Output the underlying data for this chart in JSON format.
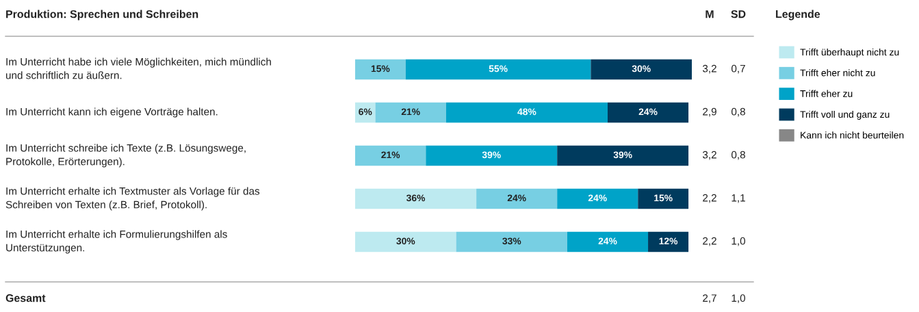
{
  "chart_data": {
    "type": "bar",
    "orientation": "horizontal",
    "stacked": true,
    "title": "Produktion: Sprechen und Schreiben",
    "legend_title": "Legende",
    "legend": "right",
    "categories": [
      "Im Unterricht habe ich viele Möglichkeiten, mich mündlich\nund schriftlich zu äußern.",
      "Im Unterricht kann ich eigene Vorträge halten.",
      "Im Unterricht schreibe ich Texte (z.B. Lösungswege,\nProtokolle, Erörterungen).",
      "Im Unterricht erhalte ich Textmuster als Vorlage für das\nSchreiben von Texten (z.B. Brief, Protokoll).",
      "Im Unterricht erhalte ich Formulierungshilfen als\nUnterstützungen."
    ],
    "series": [
      {
        "name": "Trifft überhaupt nicht zu",
        "color": "#bdeaf0",
        "values": [
          0,
          6,
          0,
          36,
          30
        ],
        "value_labels": [
          null,
          "6%",
          null,
          "36%",
          "30%"
        ]
      },
      {
        "name": "Trifft eher nicht zu",
        "color": "#77cfe3",
        "values": [
          15,
          21,
          21,
          24,
          33
        ],
        "value_labels": [
          "15%",
          "21%",
          "21%",
          "24%",
          "33%"
        ]
      },
      {
        "name": "Trifft eher zu",
        "color": "#00a3c8",
        "values": [
          55,
          48,
          39,
          24,
          24
        ],
        "value_labels": [
          "55%",
          "48%",
          "39%",
          "24%",
          "24%"
        ]
      },
      {
        "name": "Trifft voll und ganz zu",
        "color": "#003b5e",
        "values": [
          30,
          24,
          39,
          15,
          12
        ],
        "value_labels": [
          "30%",
          "24%",
          "39%",
          "15%",
          "12%"
        ]
      },
      {
        "name": "Kann ich nicht beurteilen",
        "color": "#878787",
        "values": [
          0,
          0,
          0,
          0,
          0
        ],
        "value_labels": [
          null,
          null,
          null,
          null,
          null
        ]
      }
    ],
    "annotations": [
      "M",
      "SD",
      "Gesamt",
      "2,7",
      "1,0",
      "3,2",
      "0,7",
      "2,9",
      "0,8",
      "3,2",
      "0,8",
      "2,2",
      "1,1",
      "2,2",
      "1,0"
    ]
  }
}
